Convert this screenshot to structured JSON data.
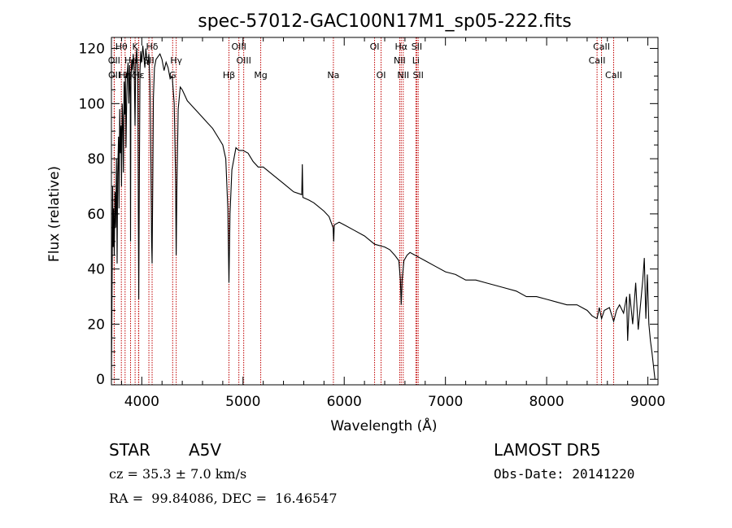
{
  "chart_data": {
    "type": "line",
    "title": "spec-57012-GAC100N17M1_sp05-222.fits",
    "xlabel": "Wavelength (Å)",
    "ylabel": "Flux (relative)",
    "xlim": [
      3700,
      9100
    ],
    "ylim": [
      -2,
      124
    ],
    "xticks": [
      4000,
      5000,
      6000,
      7000,
      8000,
      9000
    ],
    "yticks": [
      0,
      20,
      40,
      60,
      80,
      100,
      120
    ],
    "grid": false,
    "series": [
      {
        "values": [
          [
            3700,
            0
          ],
          [
            3705,
            25
          ],
          [
            3712,
            70
          ],
          [
            3718,
            48
          ],
          [
            3722,
            62
          ],
          [
            3728,
            45
          ],
          [
            3735,
            68
          ],
          [
            3742,
            55
          ],
          [
            3750,
            80
          ],
          [
            3756,
            42
          ],
          [
            3762,
            75
          ],
          [
            3770,
            88
          ],
          [
            3775,
            62
          ],
          [
            3782,
            98
          ],
          [
            3788,
            82
          ],
          [
            3795,
            92
          ],
          [
            3800,
            70
          ],
          [
            3806,
            100
          ],
          [
            3812,
            95
          ],
          [
            3818,
            75
          ],
          [
            3825,
            108
          ],
          [
            3832,
            96
          ],
          [
            3838,
            110
          ],
          [
            3844,
            84
          ],
          [
            3850,
            100
          ],
          [
            3858,
            112
          ],
          [
            3865,
            115
          ],
          [
            3872,
            100
          ],
          [
            3880,
            114
          ],
          [
            3886,
            102
          ],
          [
            3889,
            50
          ],
          [
            3893,
            108
          ],
          [
            3900,
            116
          ],
          [
            3908,
            112
          ],
          [
            3915,
            118
          ],
          [
            3925,
            113
          ],
          [
            3933,
            92
          ],
          [
            3940,
            115
          ],
          [
            3950,
            120
          ],
          [
            3960,
            110
          ],
          [
            3966,
            60
          ],
          [
            3970,
            29
          ],
          [
            3975,
            65
          ],
          [
            3982,
            112
          ],
          [
            3990,
            119
          ],
          [
            4000,
            115
          ],
          [
            4010,
            121
          ],
          [
            4020,
            117
          ],
          [
            4030,
            113
          ],
          [
            4040,
            120
          ],
          [
            4050,
            116
          ],
          [
            4060,
            114
          ],
          [
            4070,
            118
          ],
          [
            4080,
            108
          ],
          [
            4090,
            80
          ],
          [
            4097,
            50
          ],
          [
            4102,
            42
          ],
          [
            4108,
            70
          ],
          [
            4115,
            102
          ],
          [
            4125,
            113
          ],
          [
            4140,
            116
          ],
          [
            4160,
            117
          ],
          [
            4180,
            118
          ],
          [
            4200,
            116
          ],
          [
            4220,
            112
          ],
          [
            4240,
            115
          ],
          [
            4260,
            113
          ],
          [
            4280,
            109
          ],
          [
            4300,
            110
          ],
          [
            4320,
            100
          ],
          [
            4333,
            74
          ],
          [
            4340,
            45
          ],
          [
            4347,
            70
          ],
          [
            4360,
            98
          ],
          [
            4380,
            106
          ],
          [
            4400,
            105
          ],
          [
            4450,
            101
          ],
          [
            4500,
            99
          ],
          [
            4550,
            97
          ],
          [
            4600,
            95
          ],
          [
            4650,
            93
          ],
          [
            4700,
            91
          ],
          [
            4750,
            88
          ],
          [
            4800,
            85
          ],
          [
            4830,
            80
          ],
          [
            4850,
            62
          ],
          [
            4861,
            35
          ],
          [
            4872,
            60
          ],
          [
            4890,
            76
          ],
          [
            4910,
            80
          ],
          [
            4930,
            84
          ],
          [
            4960,
            83
          ],
          [
            5000,
            83
          ],
          [
            5050,
            82
          ],
          [
            5100,
            79
          ],
          [
            5150,
            77
          ],
          [
            5200,
            77
          ],
          [
            5300,
            74
          ],
          [
            5400,
            71
          ],
          [
            5500,
            68
          ],
          [
            5580,
            67
          ],
          [
            5586,
            78
          ],
          [
            5592,
            66
          ],
          [
            5650,
            65
          ],
          [
            5700,
            64
          ],
          [
            5800,
            61
          ],
          [
            5850,
            59
          ],
          [
            5890,
            55
          ],
          [
            5896,
            50
          ],
          [
            5902,
            56
          ],
          [
            5950,
            57
          ],
          [
            6000,
            56
          ],
          [
            6100,
            54
          ],
          [
            6200,
            52
          ],
          [
            6300,
            49
          ],
          [
            6400,
            48
          ],
          [
            6450,
            47
          ],
          [
            6500,
            45
          ],
          [
            6540,
            43
          ],
          [
            6555,
            36
          ],
          [
            6563,
            27
          ],
          [
            6572,
            36
          ],
          [
            6590,
            43
          ],
          [
            6620,
            45
          ],
          [
            6650,
            46
          ],
          [
            6700,
            45
          ],
          [
            6800,
            43
          ],
          [
            6900,
            41
          ],
          [
            7000,
            39
          ],
          [
            7100,
            38
          ],
          [
            7200,
            36
          ],
          [
            7300,
            36
          ],
          [
            7400,
            35
          ],
          [
            7500,
            34
          ],
          [
            7600,
            33
          ],
          [
            7700,
            32
          ],
          [
            7800,
            30
          ],
          [
            7900,
            30
          ],
          [
            8000,
            29
          ],
          [
            8100,
            28
          ],
          [
            8200,
            27
          ],
          [
            8300,
            27
          ],
          [
            8400,
            25
          ],
          [
            8450,
            23
          ],
          [
            8498,
            22
          ],
          [
            8520,
            26
          ],
          [
            8542,
            22
          ],
          [
            8570,
            25
          ],
          [
            8620,
            26
          ],
          [
            8662,
            21
          ],
          [
            8690,
            25
          ],
          [
            8720,
            27
          ],
          [
            8760,
            24
          ],
          [
            8790,
            30
          ],
          [
            8800,
            14
          ],
          [
            8820,
            31
          ],
          [
            8850,
            20
          ],
          [
            8880,
            35
          ],
          [
            8905,
            18
          ],
          [
            8930,
            28
          ],
          [
            8950,
            36
          ],
          [
            8965,
            44
          ],
          [
            8980,
            22
          ],
          [
            8995,
            38
          ],
          [
            9010,
            20
          ],
          [
            9025,
            14
          ],
          [
            9040,
            10
          ],
          [
            9055,
            5
          ],
          [
            9070,
            0
          ]
        ]
      }
    ],
    "reference_lines": [
      {
        "label": "Hθ",
        "wavelength": 3798,
        "row": 0
      },
      {
        "label": "K",
        "wavelength": 3934,
        "row": 0
      },
      {
        "label": "Hδ",
        "wavelength": 4102,
        "row": 0
      },
      {
        "label": "OIII",
        "wavelength": 4959,
        "row": 0
      },
      {
        "label": "OI",
        "wavelength": 6300,
        "row": 0
      },
      {
        "label": "Hα",
        "wavelength": 6563,
        "row": 0
      },
      {
        "label": "SII",
        "wavelength": 6717,
        "row": 0
      },
      {
        "label": "CaII",
        "wavelength": 8542,
        "row": 0
      },
      {
        "label": "OII",
        "wavelength": 3727,
        "row": 1
      },
      {
        "label": "He",
        "wavelength": 3889,
        "row": 1
      },
      {
        "label": "H",
        "wavelength": 3968,
        "row": 1
      },
      {
        "label": "SII",
        "wavelength": 4070,
        "row": 1
      },
      {
        "label": "Hγ",
        "wavelength": 4340,
        "row": 1
      },
      {
        "label": "OIII",
        "wavelength": 5007,
        "row": 1
      },
      {
        "label": "NII",
        "wavelength": 6548,
        "row": 1
      },
      {
        "label": "Li",
        "wavelength": 6708,
        "row": 1
      },
      {
        "label": "CaII",
        "wavelength": 8498,
        "row": 1
      },
      {
        "label": "OII",
        "wavelength": 3729,
        "row": 2
      },
      {
        "label": "Hη",
        "wavelength": 3835,
        "row": 2
      },
      {
        "label": "Hζ",
        "wavelength": 3889,
        "row": 2
      },
      {
        "label": "Hε",
        "wavelength": 3970,
        "row": 2
      },
      {
        "label": "G",
        "wavelength": 4305,
        "row": 2
      },
      {
        "label": "Hβ",
        "wavelength": 4861,
        "row": 2
      },
      {
        "label": "Mg",
        "wavelength": 5175,
        "row": 2
      },
      {
        "label": "Na",
        "wavelength": 5893,
        "row": 2
      },
      {
        "label": "OI",
        "wavelength": 6364,
        "row": 2
      },
      {
        "label": "NII",
        "wavelength": 6583,
        "row": 2
      },
      {
        "label": "SII",
        "wavelength": 6731,
        "row": 2
      },
      {
        "label": "CaII",
        "wavelength": 8662,
        "row": 2
      }
    ]
  },
  "info": {
    "object_class": "STAR",
    "subclass": "A5V",
    "survey": "LAMOST DR5",
    "cz": "cz = 35.3 ± 7.0 km/s",
    "obs_date": "Obs-Date: 20141220",
    "coords": "RA =  99.84086, DEC =  16.46547"
  },
  "colors": {
    "spectrum": "#000000",
    "reference_line": "#c00000",
    "text": "#000000",
    "background": "#ffffff"
  }
}
